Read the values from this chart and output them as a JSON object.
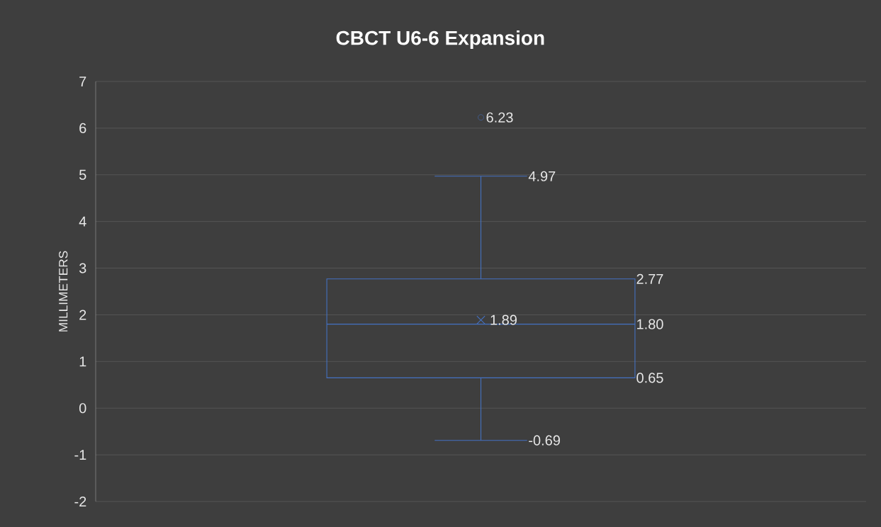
{
  "chart_data": {
    "type": "box",
    "title": "CBCT U6-6 Expansion",
    "ylabel": "MILLIMETERS",
    "categories": [
      null
    ],
    "color": "#4472c4",
    "boxes": [
      {
        "low": -0.69,
        "q1": 0.65,
        "median": 1.8,
        "q3": 2.77,
        "high": 4.97,
        "mean": 1.89,
        "outliers": [
          6.23
        ]
      }
    ],
    "ylim": [
      -2,
      7
    ],
    "yticks": [
      -2,
      -1,
      0,
      1,
      2,
      3,
      4,
      5,
      6,
      7
    ],
    "grid": "y",
    "annotations": [
      "6.23",
      "4.97",
      "2.77",
      "1.89",
      "1.80",
      "0.65",
      "-0.69"
    ]
  }
}
